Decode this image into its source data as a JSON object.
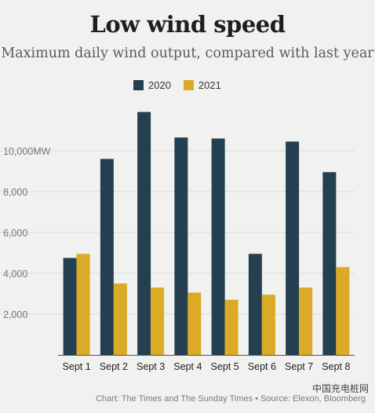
{
  "chart_data": {
    "type": "bar",
    "title": "Low wind speed",
    "subtitle": "Maximum daily wind output, compared with last year",
    "categories": [
      "Sept 1",
      "Sept 2",
      "Sept 3",
      "Sept 4",
      "Sept 5",
      "Sept 6",
      "Sept 7",
      "Sept 8"
    ],
    "series": [
      {
        "name": "2020",
        "color": "#243f4f",
        "values": [
          4750,
          9600,
          11900,
          10650,
          10600,
          4950,
          10450,
          8950
        ]
      },
      {
        "name": "2021",
        "color": "#dcab26",
        "values": [
          4950,
          3500,
          3300,
          3050,
          2700,
          2950,
          3300,
          4300
        ]
      }
    ],
    "ylim": [
      0,
      12000
    ],
    "yticks": [
      2000,
      4000,
      6000,
      8000,
      10000
    ],
    "ytick_labels": [
      "2,000",
      "4,000",
      "6,000",
      "8,000",
      "10,000MW"
    ],
    "grid": true,
    "legend_position": "top-center"
  },
  "footer": "Chart: The Times and The Sunday Times • Source: Elexon, Bloomberg",
  "watermark": "中国充电桩网"
}
